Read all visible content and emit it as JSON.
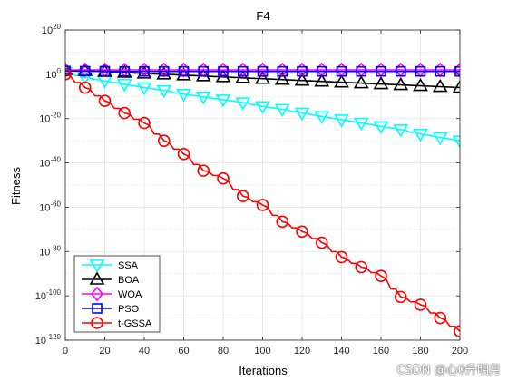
{
  "chart_data": {
    "type": "line",
    "title": "F4",
    "xlabel": "Iterations",
    "ylabel": "Fitness",
    "xlim": [
      0,
      200
    ],
    "ylim_exponent": [
      -120,
      20
    ],
    "yscale": "log",
    "grid": true,
    "legend_position": "bottom-left",
    "xticks": [
      "0",
      "20",
      "40",
      "60",
      "80",
      "100",
      "120",
      "140",
      "160",
      "180",
      "200"
    ],
    "yticks": [
      {
        "base": "10",
        "exp": "20",
        "value_exp": 20
      },
      {
        "base": "10",
        "exp": "0",
        "value_exp": 0
      },
      {
        "base": "10",
        "exp": "-20",
        "value_exp": -20
      },
      {
        "base": "10",
        "exp": "-40",
        "value_exp": -40
      },
      {
        "base": "10",
        "exp": "-60",
        "value_exp": -60
      },
      {
        "base": "10",
        "exp": "-80",
        "value_exp": -80
      },
      {
        "base": "10",
        "exp": "-100",
        "value_exp": -100
      },
      {
        "base": "10",
        "exp": "-120",
        "value_exp": -120
      }
    ],
    "series": [
      {
        "name": "SSA",
        "color": "#00ffff",
        "marker": "triangle-down",
        "x": [
          0,
          10,
          20,
          30,
          40,
          50,
          60,
          70,
          80,
          90,
          100,
          110,
          120,
          130,
          140,
          150,
          160,
          170,
          180,
          190,
          200
        ],
        "log10_y": [
          1.0,
          -1.5,
          -3.0,
          -4.5,
          -6.0,
          -7.3,
          -9.0,
          -10.2,
          -11.5,
          -12.8,
          -14.5,
          -15.8,
          -17.5,
          -19.0,
          -20.5,
          -22.0,
          -23.5,
          -25.0,
          -27.0,
          -28.5,
          -30.0
        ]
      },
      {
        "name": "BOA",
        "color": "#000000",
        "marker": "triangle-up",
        "x": [
          0,
          10,
          20,
          30,
          40,
          50,
          60,
          70,
          80,
          90,
          100,
          110,
          120,
          130,
          140,
          150,
          160,
          170,
          180,
          190,
          200
        ],
        "log10_y": [
          2.0,
          1.6,
          1.2,
          0.8,
          0.4,
          0.0,
          -0.4,
          -0.8,
          -1.2,
          -1.6,
          -2.0,
          -2.4,
          -2.8,
          -3.2,
          -3.6,
          -4.0,
          -4.4,
          -4.8,
          -5.2,
          -5.6,
          -6.0
        ]
      },
      {
        "name": "WOA",
        "color": "#ff00ff",
        "marker": "diamond",
        "x": [
          0,
          10,
          20,
          30,
          40,
          50,
          60,
          70,
          80,
          90,
          100,
          110,
          120,
          130,
          140,
          150,
          160,
          170,
          180,
          190,
          200
        ],
        "log10_y": [
          2.0,
          2.0,
          2.0,
          2.0,
          2.0,
          2.0,
          2.0,
          2.0,
          2.0,
          2.0,
          2.0,
          2.0,
          2.0,
          2.0,
          2.0,
          2.0,
          2.0,
          2.0,
          2.0,
          2.0,
          2.0
        ]
      },
      {
        "name": "PSO",
        "color": "#0000ff",
        "marker": "square",
        "x": [
          0,
          10,
          20,
          30,
          40,
          50,
          60,
          70,
          80,
          90,
          100,
          110,
          120,
          130,
          140,
          150,
          160,
          170,
          180,
          190,
          200
        ],
        "log10_y": [
          1.5,
          1.4,
          1.4,
          1.3,
          1.3,
          1.3,
          1.3,
          1.3,
          1.3,
          1.3,
          1.3,
          1.3,
          1.3,
          1.3,
          1.3,
          1.3,
          1.3,
          1.3,
          1.3,
          1.3,
          1.3
        ]
      },
      {
        "name": "t-GSSA",
        "color": "#ff0000",
        "marker": "circle",
        "x": [
          0,
          10,
          20,
          30,
          40,
          50,
          60,
          70,
          80,
          90,
          100,
          110,
          120,
          130,
          140,
          150,
          160,
          170,
          180,
          190,
          200
        ],
        "log10_y": [
          0.0,
          -6.0,
          -12.0,
          -17.5,
          -22.0,
          -30.0,
          -36.0,
          -43.5,
          -47.0,
          -55.0,
          -59.0,
          -66.5,
          -71.0,
          -76.0,
          -82.5,
          -87.0,
          -91.0,
          -100.5,
          -104.0,
          -110.0,
          -116.0
        ]
      }
    ]
  },
  "watermark": "CSDN @心0升明月"
}
